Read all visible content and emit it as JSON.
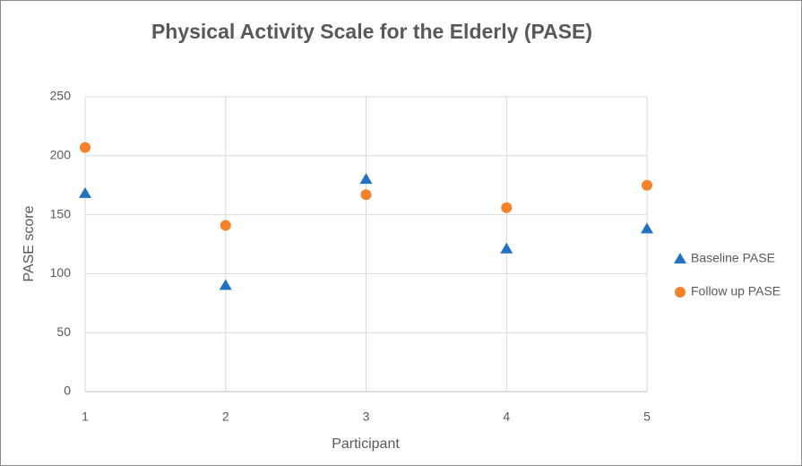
{
  "chart_data": {
    "type": "scatter",
    "title": "Physical Activity Scale for the Elderly (PASE)",
    "x_label": "Participant",
    "y_label": "PASE score",
    "xlim": [
      1,
      5
    ],
    "xticks": [
      1,
      2,
      3,
      4,
      5
    ],
    "ylim": [
      0,
      250
    ],
    "yticks": [
      0,
      50,
      100,
      150,
      200,
      250
    ],
    "grid": true,
    "legend": "right",
    "series": [
      {
        "name": "Baseline PASE",
        "color": "#2271c2",
        "marker": "triangle",
        "x": [
          1,
          2,
          3,
          4,
          5
        ],
        "values": [
          168,
          90,
          180,
          121,
          138
        ]
      },
      {
        "name": "Follow up PASE",
        "color": "#f5812a",
        "marker": "circle",
        "x": [
          1,
          2,
          3,
          4,
          5
        ],
        "values": [
          207,
          141,
          167,
          156,
          175
        ]
      }
    ]
  }
}
